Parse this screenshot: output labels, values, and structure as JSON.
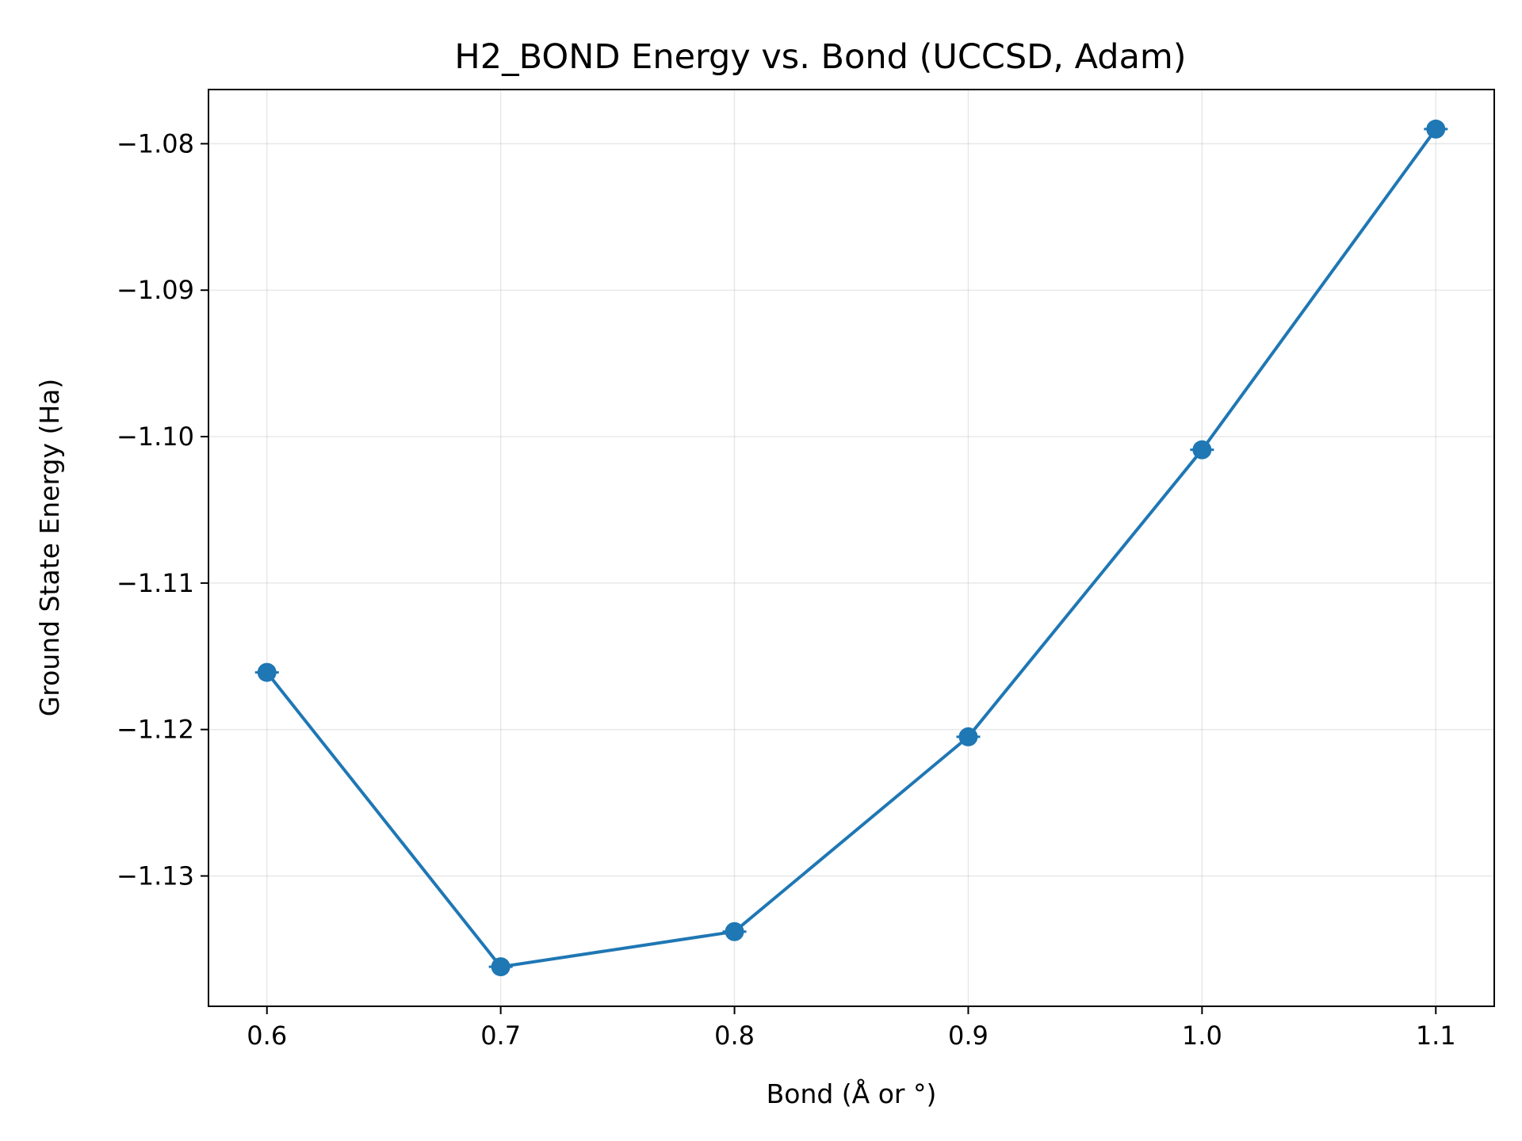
{
  "chart_data": {
    "type": "line",
    "title": "H2_BOND Energy vs. Bond (UCCSD, Adam)",
    "xlabel": "Bond (Å or °)",
    "ylabel": "Ground State Energy (Ha)",
    "x": [
      0.6,
      0.7,
      0.8,
      0.9,
      1.0,
      1.1
    ],
    "series": [
      {
        "values": [
          -1.1161,
          -1.1362,
          -1.1338,
          -1.1205,
          -1.1009,
          -1.079
        ],
        "color": "#1f77b4",
        "marker": "circle"
      }
    ],
    "xlim": [
      0.575,
      1.125
    ],
    "ylim": [
      -1.1389,
      -1.0763
    ],
    "xticks": [
      0.6,
      0.7,
      0.8,
      0.9,
      1.0,
      1.1
    ],
    "xtick_labels": [
      "0.6",
      "0.7",
      "0.8",
      "0.9",
      "1.0",
      "1.1"
    ],
    "yticks": [
      -1.13,
      -1.12,
      -1.11,
      -1.1,
      -1.09,
      -1.08
    ],
    "ytick_labels": [
      "−1.13",
      "−1.12",
      "−1.11",
      "−1.10",
      "−1.09",
      "−1.08"
    ],
    "grid": true,
    "legend": "none"
  }
}
